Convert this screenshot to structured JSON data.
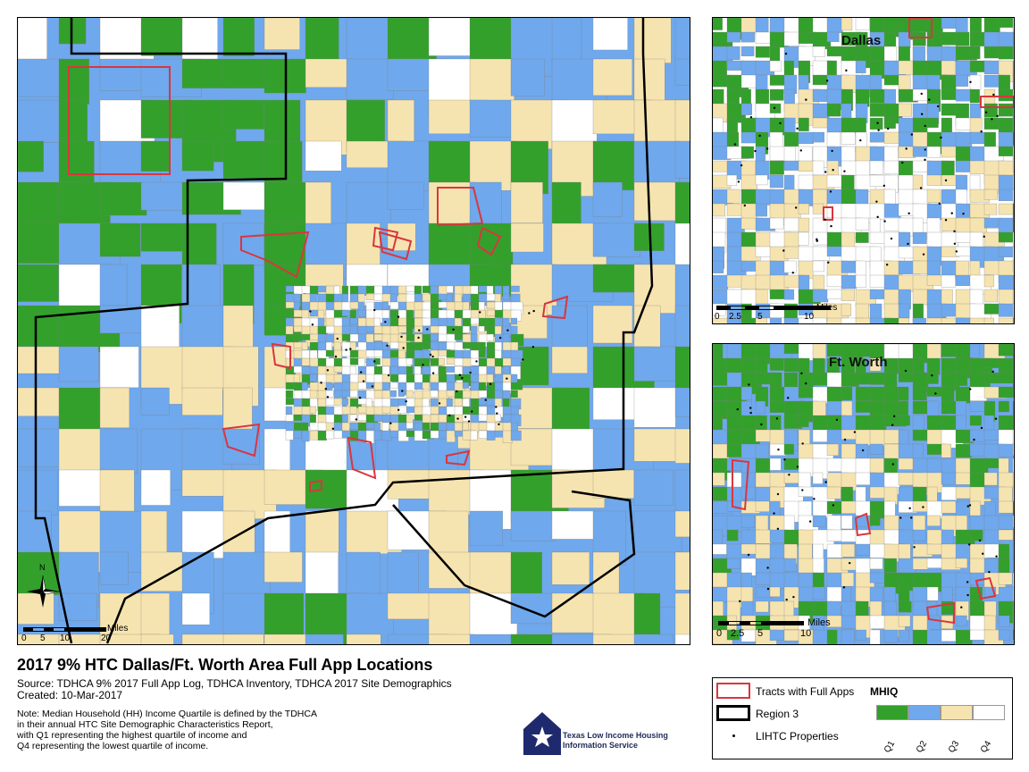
{
  "colors": {
    "q1": "#33a02c",
    "q2": "#6fa8ec",
    "q3": "#f6e4b0",
    "q4": "#ffffff",
    "tract_outline": "#d9363e",
    "region_border": "#000000"
  },
  "main_map": {
    "scale": {
      "unit": "Miles",
      "ticks": [
        "0",
        "5",
        "10",
        "20"
      ]
    },
    "north_label": "N"
  },
  "dallas_inset": {
    "title": "Dallas",
    "scale": {
      "unit": "Miles",
      "ticks": [
        "0",
        "2.5",
        "5",
        "10"
      ]
    }
  },
  "fw_inset": {
    "title": "Ft. Worth",
    "scale": {
      "unit": "Miles",
      "ticks": [
        "0",
        "2.5",
        "5",
        "10"
      ]
    }
  },
  "title_block": {
    "title": "2017 9% HTC Dallas/Ft. Worth Area Full App Locations",
    "source": "Source: TDHCA 9% 2017 Full App Log, TDHCA Inventory, TDHCA 2017 Site Demographics",
    "created": "Created: 10-Mar-2017",
    "notes": [
      "Note: Median Household (HH) Income Quartile is defined by the TDHCA",
      "in their annual HTC Site Demographic Characteristics Report,",
      "with Q1 representing the highest quartile of income and",
      "Q4 representing the lowest quartile of income."
    ]
  },
  "logo": {
    "line1": "Texas Low Income Housing",
    "line2": "Information Service",
    "icon": "star-house-icon"
  },
  "legend": {
    "tracts_label": "Tracts with Full Apps",
    "region_label": "Region 3",
    "lihtc_label": "LIHTC Properties",
    "mhiq_label": "MHIQ",
    "quartiles": [
      "Q1",
      "Q2",
      "Q3",
      "Q4"
    ]
  }
}
